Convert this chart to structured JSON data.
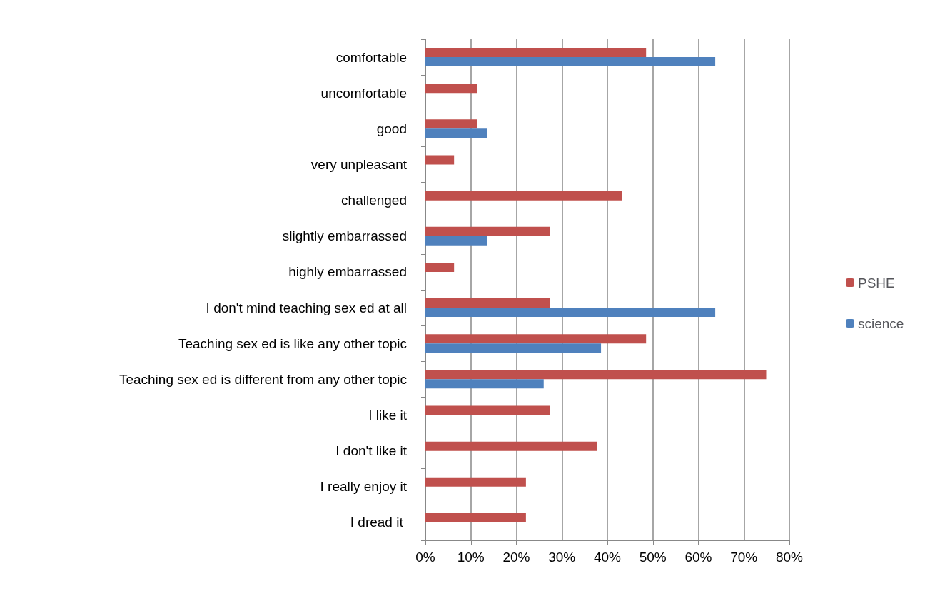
{
  "chart_data": {
    "type": "bar",
    "orientation": "horizontal",
    "categories": [
      "comfortable",
      "uncomfortable",
      "good",
      "very unpleasant",
      "challenged",
      "slightly embarrassed",
      "highly embarrassed",
      "I don't mind teaching sex ed at all",
      "Teaching sex ed is like any other topic",
      "Teaching sex ed is different from any other topic",
      "I like it",
      "I don't like it",
      "I really enjoy it",
      "I dread it "
    ],
    "series": [
      {
        "name": "PSHE",
        "color": "#c0504d",
        "values": [
          48.5,
          11.3,
          11.3,
          6.3,
          43.2,
          27.3,
          6.3,
          27.3,
          48.5,
          74.9,
          27.3,
          37.8,
          22.1,
          22.1
        ]
      },
      {
        "name": "science",
        "color": "#4f81bd",
        "values": [
          63.7,
          0,
          13.5,
          0,
          0,
          13.5,
          0,
          63.7,
          38.6,
          26,
          0,
          0,
          0,
          0
        ]
      }
    ],
    "xlim": [
      0,
      80
    ],
    "xticks": [
      {
        "value": 0,
        "label": "0%"
      },
      {
        "value": 10,
        "label": "10%"
      },
      {
        "value": 20,
        "label": "20%"
      },
      {
        "value": 30,
        "label": "30%"
      },
      {
        "value": 40,
        "label": "40%"
      },
      {
        "value": 50,
        "label": "50%"
      },
      {
        "value": 60,
        "label": "60%"
      },
      {
        "value": 70,
        "label": "70%"
      },
      {
        "value": 80,
        "label": "80%"
      }
    ],
    "grid": "x",
    "legend": "right"
  }
}
